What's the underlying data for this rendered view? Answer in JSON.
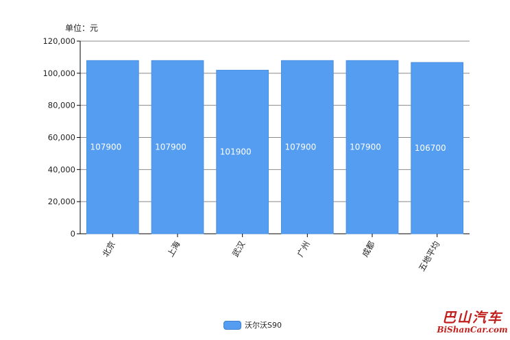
{
  "unit_label": "单位：元",
  "legend": {
    "label": "沃尔沃S90",
    "color": "#559df0"
  },
  "watermark": {
    "cn": "巴山汽车",
    "en": "BiShanCar.com"
  },
  "chart_data": {
    "type": "bar",
    "categories": [
      "北京",
      "上海",
      "武汉",
      "广州",
      "成都",
      "五地平均"
    ],
    "series": [
      {
        "name": "沃尔沃S90",
        "values": [
          107900,
          107900,
          101900,
          107900,
          107900,
          106700
        ]
      }
    ],
    "data_labels": [
      "107900",
      "107900",
      "101900",
      "107900",
      "107900",
      "106700"
    ],
    "yticks": [
      "0",
      "20,000",
      "40,000",
      "60,000",
      "80,000",
      "100,000",
      "120,000"
    ],
    "ylim": [
      0,
      120000
    ],
    "ylabel": "单位：元",
    "xlabel": "",
    "grid": true,
    "legend_position": "bottom",
    "bar_color": "#559df0"
  }
}
